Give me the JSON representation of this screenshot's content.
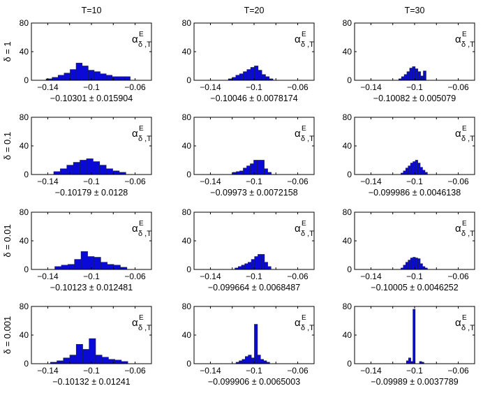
{
  "colors": {
    "bar_fill": "#0a0ad8",
    "bar_stroke": "#1c1c50",
    "axis": "#000000"
  },
  "chart_data": {
    "type": "bar",
    "layout": "4x3 grid of histograms",
    "column_titles": [
      "T=10",
      "T=20",
      "T=30"
    ],
    "row_labels": [
      "δ = 1",
      "δ = 0.1",
      "δ = 0.01",
      "δ = 0.001"
    ],
    "legend_label": {
      "main": "α",
      "sup": "E",
      "sub": "δ ,T"
    },
    "xlim": [
      -0.155,
      -0.045
    ],
    "ylim": [
      0,
      80
    ],
    "xticks": [
      -0.14,
      -0.12,
      -0.1,
      -0.08,
      -0.06
    ],
    "xtick_labels": [
      "−0.14",
      "",
      "−0.1",
      "",
      "−0.06"
    ],
    "yticks": [
      0,
      40,
      80
    ],
    "ytick_labels": [
      "0",
      "40",
      "80"
    ],
    "panels": [
      {
        "row": 0,
        "col": 0,
        "caption": "−0.10301 ± 0.015904",
        "bars": [
          [
            -0.1415,
            0.0055,
            2
          ],
          [
            -0.136,
            0.0055,
            4
          ],
          [
            -0.1305,
            0.0055,
            7
          ],
          [
            -0.125,
            0.0055,
            10
          ],
          [
            -0.1195,
            0.0055,
            15
          ],
          [
            -0.114,
            0.0055,
            24
          ],
          [
            -0.1085,
            0.0055,
            20
          ],
          [
            -0.103,
            0.0055,
            14
          ],
          [
            -0.0975,
            0.0055,
            12
          ],
          [
            -0.092,
            0.0055,
            9
          ],
          [
            -0.0865,
            0.0055,
            7
          ],
          [
            -0.081,
            0.0055,
            5
          ],
          [
            -0.0755,
            0.0055,
            5
          ],
          [
            -0.07,
            0.0055,
            5
          ]
        ]
      },
      {
        "row": 0,
        "col": 1,
        "caption": "−0.10046 ± 0.0078174",
        "bars": [
          [
            -0.1235,
            0.0034,
            2
          ],
          [
            -0.1201,
            0.0034,
            4
          ],
          [
            -0.1167,
            0.0034,
            7
          ],
          [
            -0.1133,
            0.0034,
            9
          ],
          [
            -0.1099,
            0.0034,
            12
          ],
          [
            -0.1065,
            0.0034,
            15
          ],
          [
            -0.1031,
            0.0034,
            18
          ],
          [
            -0.0997,
            0.0034,
            20
          ],
          [
            -0.0963,
            0.0034,
            14
          ],
          [
            -0.0929,
            0.0034,
            8
          ],
          [
            -0.0895,
            0.0034,
            5
          ],
          [
            -0.0861,
            0.0034,
            2
          ]
        ]
      },
      {
        "row": 0,
        "col": 2,
        "caption": "−0.10082 ± 0.005079",
        "bars": [
          [
            -0.1145,
            0.0025,
            2
          ],
          [
            -0.112,
            0.0025,
            5
          ],
          [
            -0.1095,
            0.0025,
            8
          ],
          [
            -0.107,
            0.0025,
            12
          ],
          [
            -0.1045,
            0.0025,
            17
          ],
          [
            -0.102,
            0.0025,
            19
          ],
          [
            -0.0995,
            0.0025,
            16
          ],
          [
            -0.097,
            0.0025,
            12
          ],
          [
            -0.0945,
            0.0025,
            6
          ],
          [
            -0.092,
            0.0025,
            13
          ]
        ]
      },
      {
        "row": 1,
        "col": 0,
        "caption": "−0.10179 ± 0.0128",
        "bars": [
          [
            -0.1345,
            0.006,
            4
          ],
          [
            -0.1285,
            0.006,
            8
          ],
          [
            -0.1225,
            0.006,
            13
          ],
          [
            -0.1165,
            0.006,
            17
          ],
          [
            -0.1105,
            0.006,
            20
          ],
          [
            -0.1045,
            0.006,
            22
          ],
          [
            -0.0985,
            0.006,
            18
          ],
          [
            -0.0925,
            0.006,
            13
          ],
          [
            -0.0865,
            0.006,
            8
          ],
          [
            -0.0805,
            0.006,
            5
          ],
          [
            -0.0745,
            0.006,
            3
          ]
        ]
      },
      {
        "row": 1,
        "col": 1,
        "caption": "−0.09973 ± 0.0072158",
        "bars": [
          [
            -0.1195,
            0.0032,
            3
          ],
          [
            -0.1163,
            0.0032,
            4
          ],
          [
            -0.1131,
            0.0032,
            5
          ],
          [
            -0.1099,
            0.0032,
            9
          ],
          [
            -0.1067,
            0.0032,
            12
          ],
          [
            -0.1035,
            0.0032,
            15
          ],
          [
            -0.1003,
            0.0032,
            20
          ],
          [
            -0.0971,
            0.0032,
            20
          ],
          [
            -0.0939,
            0.0032,
            20
          ],
          [
            -0.0907,
            0.0032,
            8
          ],
          [
            -0.0875,
            0.0032,
            3
          ]
        ]
      },
      {
        "row": 1,
        "col": 2,
        "caption": "−0.099986 ± 0.0046138",
        "bars": [
          [
            -0.1125,
            0.0022,
            2
          ],
          [
            -0.1103,
            0.0022,
            5
          ],
          [
            -0.1081,
            0.0022,
            9
          ],
          [
            -0.1059,
            0.0022,
            12
          ],
          [
            -0.1037,
            0.0022,
            16
          ],
          [
            -0.1015,
            0.0022,
            18
          ],
          [
            -0.0993,
            0.0022,
            20
          ],
          [
            -0.0971,
            0.0022,
            16
          ],
          [
            -0.0949,
            0.0022,
            10
          ],
          [
            -0.0927,
            0.0022,
            6
          ],
          [
            -0.0905,
            0.0022,
            3
          ]
        ]
      },
      {
        "row": 2,
        "col": 0,
        "caption": "−0.10123 ± 0.012481",
        "bars": [
          [
            -0.1335,
            0.006,
            4
          ],
          [
            -0.1275,
            0.006,
            6
          ],
          [
            -0.1215,
            0.006,
            7
          ],
          [
            -0.1155,
            0.006,
            14
          ],
          [
            -0.1095,
            0.006,
            25
          ],
          [
            -0.1035,
            0.006,
            18
          ],
          [
            -0.0975,
            0.006,
            17
          ],
          [
            -0.0915,
            0.006,
            10
          ],
          [
            -0.0855,
            0.006,
            7
          ],
          [
            -0.0795,
            0.006,
            6
          ],
          [
            -0.0735,
            0.006,
            3
          ]
        ]
      },
      {
        "row": 2,
        "col": 1,
        "caption": "−0.099664 ± 0.0068487",
        "bars": [
          [
            -0.1175,
            0.003,
            2
          ],
          [
            -0.1145,
            0.003,
            4
          ],
          [
            -0.1115,
            0.003,
            6
          ],
          [
            -0.1085,
            0.003,
            8
          ],
          [
            -0.1055,
            0.003,
            10
          ],
          [
            -0.1025,
            0.003,
            14
          ],
          [
            -0.0995,
            0.003,
            18
          ],
          [
            -0.0965,
            0.003,
            21
          ],
          [
            -0.0935,
            0.003,
            21
          ],
          [
            -0.0905,
            0.003,
            10
          ],
          [
            -0.0875,
            0.003,
            4
          ]
        ]
      },
      {
        "row": 2,
        "col": 2,
        "caption": "−0.10005 ± 0.0046252",
        "bars": [
          [
            -0.1125,
            0.0022,
            2
          ],
          [
            -0.1103,
            0.0022,
            6
          ],
          [
            -0.1081,
            0.0022,
            10
          ],
          [
            -0.1059,
            0.0022,
            13
          ],
          [
            -0.1037,
            0.0022,
            16
          ],
          [
            -0.1015,
            0.0022,
            17
          ],
          [
            -0.0993,
            0.0022,
            16
          ],
          [
            -0.0971,
            0.0022,
            15
          ],
          [
            -0.0949,
            0.0022,
            8
          ],
          [
            -0.0927,
            0.0022,
            4
          ],
          [
            -0.0905,
            0.0022,
            2
          ]
        ]
      },
      {
        "row": 3,
        "col": 0,
        "caption": "−0.10132 ± 0.01241",
        "bars": [
          [
            -0.1375,
            0.0059,
            2
          ],
          [
            -0.1316,
            0.0059,
            4
          ],
          [
            -0.1257,
            0.0059,
            8
          ],
          [
            -0.1198,
            0.0059,
            12
          ],
          [
            -0.1139,
            0.0059,
            27
          ],
          [
            -0.108,
            0.0059,
            20
          ],
          [
            -0.1021,
            0.0059,
            35
          ],
          [
            -0.0962,
            0.0059,
            12
          ],
          [
            -0.0903,
            0.0059,
            9
          ],
          [
            -0.0844,
            0.0059,
            6
          ],
          [
            -0.0785,
            0.0059,
            5
          ],
          [
            -0.0726,
            0.0059,
            3
          ]
        ]
      },
      {
        "row": 3,
        "col": 1,
        "caption": "−0.099906 ± 0.0065003",
        "bars": [
          [
            -0.1165,
            0.0028,
            2
          ],
          [
            -0.1137,
            0.0028,
            4
          ],
          [
            -0.1109,
            0.0028,
            6
          ],
          [
            -0.1081,
            0.0028,
            10
          ],
          [
            -0.1053,
            0.0028,
            12
          ],
          [
            -0.1025,
            0.0028,
            8
          ],
          [
            -0.0997,
            0.0028,
            55
          ],
          [
            -0.0969,
            0.0028,
            12
          ],
          [
            -0.0941,
            0.0028,
            6
          ],
          [
            -0.0913,
            0.0028,
            4
          ],
          [
            -0.0885,
            0.0028,
            2
          ]
        ]
      },
      {
        "row": 3,
        "col": 2,
        "caption": "−0.09989 ± 0.0037789",
        "bars": [
          [
            -0.1075,
            0.002,
            4
          ],
          [
            -0.1055,
            0.002,
            8
          ],
          [
            -0.1035,
            0.002,
            3
          ],
          [
            -0.1015,
            0.002,
            76
          ],
          [
            -0.0955,
            0.002,
            3
          ],
          [
            -0.0935,
            0.002,
            2
          ]
        ]
      }
    ]
  }
}
